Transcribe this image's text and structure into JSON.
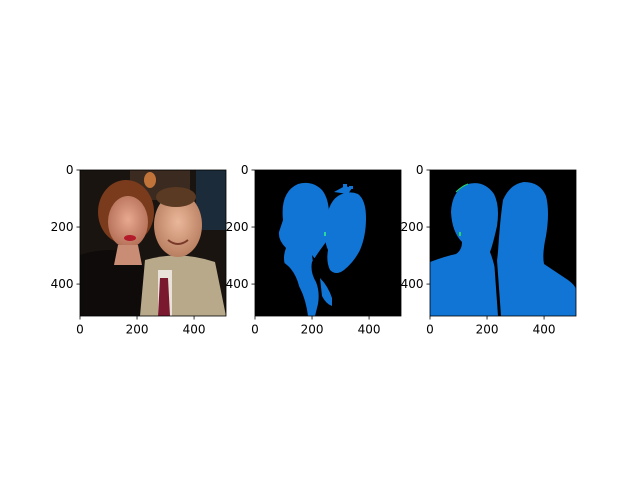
{
  "chart_data": [
    {
      "type": "image",
      "description_role": "photo",
      "xlim": [
        0,
        512
      ],
      "ylim": [
        512,
        0
      ],
      "xticks": [
        "0",
        "200",
        "400"
      ],
      "yticks": [
        "0",
        "200",
        "400"
      ]
    },
    {
      "type": "image",
      "description_role": "predicted-segmentation-mask",
      "xlim": [
        0,
        512
      ],
      "ylim": [
        512,
        0
      ],
      "xticks": [
        "0",
        "200",
        "400"
      ],
      "yticks": [
        "0",
        "200",
        "400"
      ],
      "colors": {
        "background": "#000000",
        "person": "#1175d6",
        "minor": "#2ad6a0"
      }
    },
    {
      "type": "image",
      "description_role": "ground-truth-segmentation-mask",
      "xlim": [
        0,
        512
      ],
      "ylim": [
        512,
        0
      ],
      "xticks": [
        "0",
        "200",
        "400"
      ],
      "yticks": [
        "0",
        "200",
        "400"
      ],
      "colors": {
        "background": "#000000",
        "person": "#1175d6",
        "minor": "#2ad66a"
      }
    }
  ]
}
